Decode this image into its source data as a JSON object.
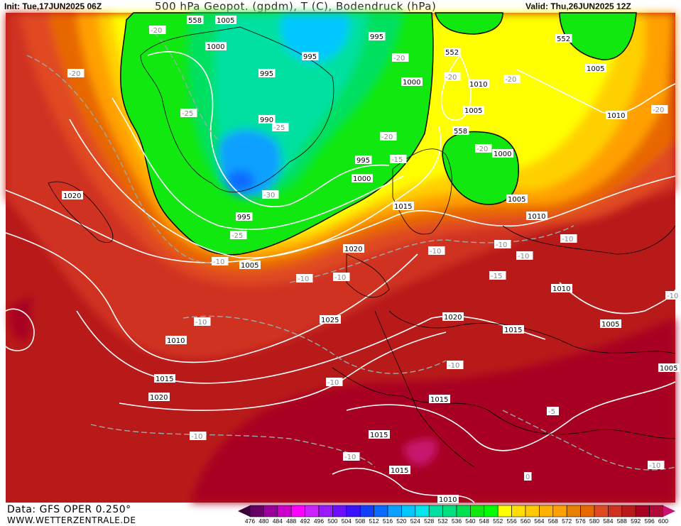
{
  "header": {
    "init": "Init: Tue,17JUN2025 06Z",
    "title": "500 hPa Geopot. (gpdm), T (C), Bodendruck (hPa)",
    "valid": "Valid: Thu,26JUN2025 12Z"
  },
  "footer": {
    "data_source": "Data: GFS OPER 0.250°",
    "website": "WWW.WETTERZENTRALE.DE"
  },
  "colorbar": {
    "labels": [
      "476",
      "480",
      "484",
      "488",
      "492",
      "496",
      "500",
      "504",
      "508",
      "512",
      "516",
      "520",
      "524",
      "528",
      "532",
      "536",
      "540",
      "548",
      "552",
      "556",
      "560",
      "564",
      "568",
      "572",
      "576",
      "580",
      "584",
      "588",
      "592",
      "596",
      "600"
    ],
    "colors": [
      "#660066",
      "#990099",
      "#cc00cc",
      "#ff00ff",
      "#cc22ff",
      "#9a1aff",
      "#6a10ff",
      "#3a10ff",
      "#1040ff",
      "#0a6aff",
      "#0aa0ff",
      "#00c8ff",
      "#00e6ea",
      "#00e0a0",
      "#00e080",
      "#00e050",
      "#10e810",
      "#00ff00",
      "#ffff00",
      "#ffdd00",
      "#ffc800",
      "#ffb000",
      "#ffa000",
      "#e88000",
      "#e86800",
      "#e04a20",
      "#d03020",
      "#b81a1a",
      "#a80020",
      "#b00838"
    ],
    "arrow_low_color": "#3a0038",
    "arrow_high_color": "#c8146e"
  },
  "map": {
    "pressure_labels": [
      "1005",
      "1000",
      "995",
      "995",
      "995",
      "1000",
      "990",
      "995",
      "995",
      "1000",
      "1010",
      "1005",
      "1000",
      "1005",
      "1010",
      "1020",
      "1015",
      "1020",
      "1005",
      "1010",
      "1025",
      "1020",
      "1015",
      "1010",
      "1015",
      "1020",
      "1005",
      "1015",
      "1015",
      "1015",
      "1010",
      "1010",
      "1005",
      "1005",
      "558",
      "552",
      "558",
      "552"
    ],
    "temperature_labels": [
      "-20",
      "-20",
      "-25",
      "-25",
      "-20",
      "-30",
      "-25",
      "-20",
      "-20",
      "-15",
      "-20",
      "-20",
      "-10",
      "-20",
      "-10",
      "-10",
      "-10",
      "-10",
      "-15",
      "-10",
      "-10",
      "-10",
      "-10",
      "-10",
      "-10",
      "-5",
      "0",
      "-10",
      "-10",
      "-10"
    ]
  }
}
